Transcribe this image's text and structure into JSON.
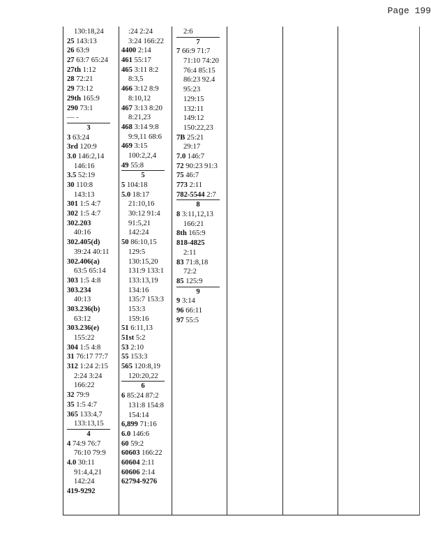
{
  "page_label": "Page 199",
  "columns": [
    [
      {
        "i": 1,
        "r": "130:18,24"
      },
      {
        "t": "25",
        "r": "143:13"
      },
      {
        "t": "26",
        "r": "63:9"
      },
      {
        "t": "27",
        "r": "63:7 65:24"
      },
      {
        "t": "27th",
        "r": "1:12"
      },
      {
        "t": "28",
        "r": "72:21"
      },
      {
        "t": "29",
        "r": "73:12"
      },
      {
        "t": "29th",
        "r": "165:9"
      },
      {
        "t": "290",
        "r": "73:1"
      },
      {
        "d": "— -"
      },
      {
        "h": "3"
      },
      {
        "t": "3",
        "r": "63:24"
      },
      {
        "t": "3rd",
        "r": "120:9"
      },
      {
        "t": "3.0",
        "r": "146:2,14"
      },
      {
        "i": 1,
        "r": "146:16"
      },
      {
        "t": "3.5",
        "r": "52:19"
      },
      {
        "t": "30",
        "r": "110:8"
      },
      {
        "i": 1,
        "r": "143:13"
      },
      {
        "t": "301",
        "r": "1:5 4:7"
      },
      {
        "t": "302",
        "r": "1:5 4:7"
      },
      {
        "t": "302.203",
        "r": ""
      },
      {
        "i": 1,
        "r": "40:16"
      },
      {
        "t": "302.405(d)",
        "r": ""
      },
      {
        "i": 1,
        "r": "39:24 40:11"
      },
      {
        "t": "302.406(a)",
        "r": ""
      },
      {
        "i": 1,
        "r": "63:5 65:14"
      },
      {
        "t": "303",
        "r": "1:5 4:8"
      },
      {
        "t": "303.234",
        "r": ""
      },
      {
        "i": 1,
        "r": "40:13"
      },
      {
        "t": "303.236(b)",
        "r": ""
      },
      {
        "i": 1,
        "r": "63:12"
      },
      {
        "t": "303.236(e)",
        "r": ""
      },
      {
        "i": 1,
        "r": "155:22"
      },
      {
        "t": "304",
        "r": "1:5 4:8"
      },
      {
        "t": "31",
        "r": "76:17 77:7"
      },
      {
        "t": "312",
        "r": "1:24 2:15"
      },
      {
        "i": 1,
        "r": "2:24 3:24"
      },
      {
        "i": 1,
        "r": "166:22"
      },
      {
        "t": "32",
        "r": "79:9"
      },
      {
        "t": "35",
        "r": "1:5 4:7"
      },
      {
        "t": "365",
        "r": "133:4,7"
      },
      {
        "i": 1,
        "r": "133:13,15"
      },
      {
        "h": "4"
      },
      {
        "t": "4",
        "r": "74:9 76:7"
      },
      {
        "i": 1,
        "r": "76:10 79:9"
      },
      {
        "t": "4.0",
        "r": "30:11"
      },
      {
        "i": 1,
        "r": "91:4,4,21"
      },
      {
        "i": 1,
        "r": "142:24"
      },
      {
        "t": "419-9292",
        "r": ""
      }
    ],
    [
      {
        "i": 1,
        "r": ":24 2:24"
      },
      {
        "i": 1,
        "r": "3:24 166:22"
      },
      {
        "t": "4400",
        "r": "2:14"
      },
      {
        "t": "461",
        "r": "55:17"
      },
      {
        "t": "465",
        "r": "3:11 8:2"
      },
      {
        "i": 1,
        "r": "8:3,5"
      },
      {
        "t": "466",
        "r": "3:12 8:9"
      },
      {
        "i": 1,
        "r": "8:10,12"
      },
      {
        "t": "467",
        "r": "3:13 8:20"
      },
      {
        "i": 1,
        "r": "8:21,23"
      },
      {
        "t": "468",
        "r": "3:14 9:8"
      },
      {
        "i": 1,
        "r": "9:9,11 68:6"
      },
      {
        "t": "469",
        "r": "3:15"
      },
      {
        "i": 1,
        "r": "100:2,2,4"
      },
      {
        "t": "49",
        "r": "55:8"
      },
      {
        "h": "5"
      },
      {
        "t": "5",
        "r": "104:18"
      },
      {
        "t": "5.0",
        "r": "18:17"
      },
      {
        "i": 1,
        "r": "21:10,16"
      },
      {
        "i": 1,
        "r": "30:12 91:4"
      },
      {
        "i": 1,
        "r": "91:5,21"
      },
      {
        "i": 1,
        "r": "142:24"
      },
      {
        "t": "50",
        "r": "86:10,15"
      },
      {
        "i": 1,
        "r": "129:5"
      },
      {
        "i": 1,
        "r": "130:15,20"
      },
      {
        "i": 1,
        "r": "131:9 133:1"
      },
      {
        "i": 1,
        "r": "133:13,19"
      },
      {
        "i": 1,
        "r": "134:16"
      },
      {
        "i": 1,
        "r": "135:7 153:3"
      },
      {
        "i": 1,
        "r": "153:3"
      },
      {
        "i": 1,
        "r": "159:16"
      },
      {
        "t": "51",
        "r": "6:11,13"
      },
      {
        "t": "51st",
        "r": "5:2"
      },
      {
        "t": "53",
        "r": "2:10"
      },
      {
        "t": "55",
        "r": "153:3"
      },
      {
        "t": "565",
        "r": "120:8,19"
      },
      {
        "i": 1,
        "r": "120:20,22"
      },
      {
        "h": "6"
      },
      {
        "t": "6",
        "r": "85:24 87:2"
      },
      {
        "i": 1,
        "r": "131:8 154:8"
      },
      {
        "i": 1,
        "r": "154:14"
      },
      {
        "t": "6,899",
        "r": "71:16"
      },
      {
        "t": "6.0",
        "r": "146:6"
      },
      {
        "t": "60",
        "r": "59:2"
      },
      {
        "t": "60603",
        "r": "166:22"
      },
      {
        "t": "60604",
        "r": "2:11"
      },
      {
        "t": "60606",
        "r": "2:14"
      },
      {
        "t": "62794-9276",
        "r": ""
      }
    ],
    [
      {
        "i": 1,
        "r": "2:6"
      },
      {
        "h": "7"
      },
      {
        "t": "7",
        "r": "66:9 71:7"
      },
      {
        "i": 1,
        "r": "71:10 74:20"
      },
      {
        "i": 1,
        "r": "76:4 85:15"
      },
      {
        "i": 1,
        "r": "86:23 92.4"
      },
      {
        "i": 1,
        "r": "95:23"
      },
      {
        "i": 1,
        "r": "129:15"
      },
      {
        "i": 1,
        "r": "132:11"
      },
      {
        "i": 1,
        "r": "149:12"
      },
      {
        "i": 1,
        "r": "150:22,23"
      },
      {
        "t": "7B",
        "r": "25:21"
      },
      {
        "i": 1,
        "r": "29:17"
      },
      {
        "t": "7.0",
        "r": "146:7"
      },
      {
        "t": "72",
        "r": "90:23 91:3"
      },
      {
        "t": "75",
        "r": "46:7"
      },
      {
        "t": "773",
        "r": "2:11"
      },
      {
        "t": "782-5544",
        "r": "2:7"
      },
      {
        "h": "8"
      },
      {
        "t": "8",
        "r": "3:11,12,13"
      },
      {
        "i": 1,
        "r": "166:21"
      },
      {
        "t": "8th",
        "r": "165:9"
      },
      {
        "t": "818-4825",
        "r": ""
      },
      {
        "i": 1,
        "r": "2:11"
      },
      {
        "t": "83",
        "r": "71:8,18"
      },
      {
        "i": 1,
        "r": "72:2"
      },
      {
        "t": "85",
        "r": "125:9"
      },
      {
        "h": "9"
      },
      {
        "t": "9",
        "r": "3:14"
      },
      {
        "t": "96",
        "r": "66:11"
      },
      {
        "t": "97",
        "r": "55:5"
      }
    ]
  ]
}
